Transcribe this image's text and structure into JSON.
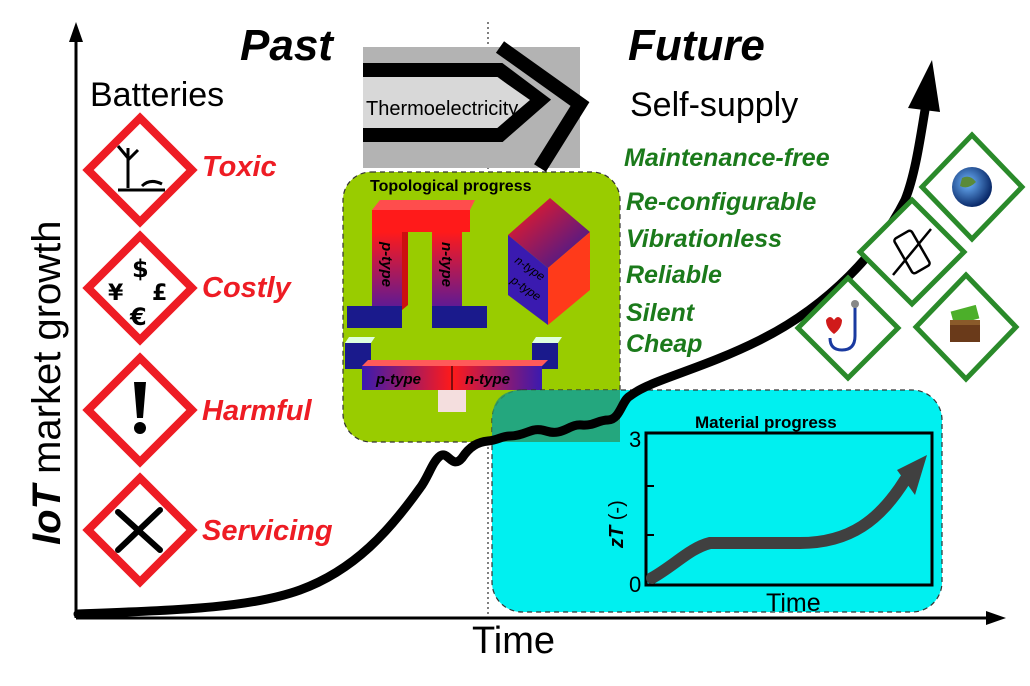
{
  "past_label": "Past",
  "future_label": "Future",
  "batteries_label": "Batteries",
  "self_supply_label": "Self-supply",
  "thermo_label": "Thermoelectricity",
  "y_axis": {
    "italic": "IoT",
    "rest": " market growth"
  },
  "x_axis_label": "Time",
  "battery_issues": [
    {
      "label": "Toxic",
      "icon": "dead-tree-icon"
    },
    {
      "label": "Costly",
      "icon": "currency-icon"
    },
    {
      "label": "Harmful",
      "icon": "exclamation-icon"
    },
    {
      "label": "Servicing",
      "icon": "tools-icon"
    }
  ],
  "self_supply_benefits": [
    "Maintenance-free",
    "Re-configurable",
    "Vibrationless",
    "Reliable",
    "Silent",
    "Cheap"
  ],
  "topological": {
    "title": "Topological progress",
    "p_type": "p-type",
    "n_type": "n-type",
    "p_type_small": "p-type",
    "n_type_small": "n-type",
    "stack_n": "n-type",
    "stack_p": "p-type"
  },
  "material": {
    "title": "Material progress",
    "ylabel_italic": "zT",
    "ylabel_rest": " (-)",
    "xlabel": "Time",
    "ticks": [
      "0",
      "3"
    ]
  },
  "applications": [
    "globe-icon",
    "no-vibration-icon",
    "stethoscope-icon",
    "wallet-icon"
  ],
  "colors": {
    "warning_red": "#ee1c24",
    "benefit_green": "#1b7a1b",
    "topological_bg": "#99cc00",
    "material_bg": "#00f0f0",
    "app_border": "#2a8a2a"
  }
}
